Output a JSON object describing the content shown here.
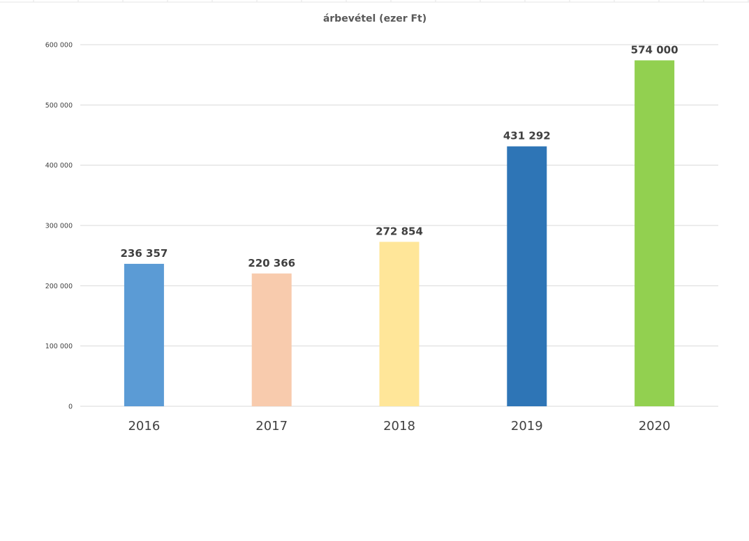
{
  "chart_data": {
    "type": "bar",
    "title": "árbevétel (ezer Ft)",
    "xlabel": "",
    "ylabel": "",
    "categories": [
      "2016",
      "2017",
      "2018",
      "2019",
      "2020"
    ],
    "values": [
      236357,
      220366,
      272854,
      431292,
      574000
    ],
    "value_labels": [
      "236 357",
      "220 366",
      "272 854",
      "431 292",
      "574 000"
    ],
    "colors": [
      "#5b9bd5",
      "#f8cbad",
      "#ffe699",
      "#2e75b6",
      "#92d050"
    ],
    "ylim": [
      0,
      600000
    ],
    "yticks": [
      0,
      100000,
      200000,
      300000,
      400000,
      500000,
      600000
    ],
    "ytick_labels": [
      "0",
      "100 000",
      "200 000",
      "300 000",
      "400 000",
      "500 000",
      "600 000"
    ],
    "grid": true,
    "legend": "none"
  }
}
